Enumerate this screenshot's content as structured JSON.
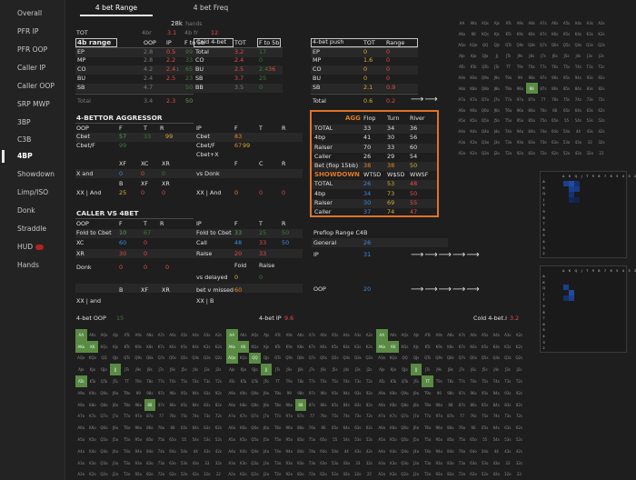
{
  "sidebar": [
    "Overall",
    "PFR IP",
    "PFR OOP",
    "Caller IP",
    "Caller OOP",
    "SRP MWP",
    "3BP",
    "C3B",
    "4BP",
    "Showdown",
    "Limp/ISO",
    "Donk",
    "Straddle",
    "HUD",
    "Hands"
  ],
  "active_nav": "4BP",
  "tabs": [
    "4 bet Range",
    "4 bet Freq"
  ],
  "hands_count": "28k",
  "hands_label": "hands",
  "tot_label": "TOT",
  "tot_4br_label": "4br",
  "tot_4br_val": "3.1",
  "tot_4bfr_label": "4b fr",
  "tot_4bfr_val": "12",
  "range": {
    "title": "4b range",
    "cols": [
      "OOP",
      "IP",
      "F to 5b"
    ],
    "rows": [
      [
        "EP",
        "2.8",
        "0.5",
        "99"
      ],
      [
        "MP",
        "2.8",
        "2.2",
        "33"
      ],
      [
        "CO",
        "4.2",
        "2.4",
        "65"
      ],
      [
        "BU",
        "2.4",
        "2.5",
        "23"
      ],
      [
        "SB",
        "4.7",
        "",
        "50"
      ]
    ],
    "smalls": [
      "",
      "",
      "1",
      "",
      ""
    ],
    "total": [
      "Total",
      "3.4",
      "2.3",
      "50"
    ]
  },
  "cold": {
    "title": "Cold 4-bet",
    "cols": [
      "TOT",
      "F to 5b"
    ],
    "rows": [
      [
        "Total",
        "3.2",
        "17"
      ],
      [
        "CO",
        "2.4",
        "0"
      ],
      [
        "BU",
        "2.5",
        "2.4"
      ],
      [
        "SB",
        "3.7",
        "25"
      ],
      [
        "BB",
        "3.5",
        "0"
      ]
    ],
    "extra": [
      "",
      "",
      "36",
      "",
      ""
    ]
  },
  "push": {
    "title": "4-bet push",
    "cols": [
      "TOT",
      "Range"
    ],
    "rows": [
      [
        "EP",
        "0",
        "0"
      ],
      [
        "MP",
        "1.6",
        "0"
      ],
      [
        "CO",
        "0",
        "0"
      ],
      [
        "BU",
        "0",
        "0"
      ],
      [
        "SB",
        "2.1",
        "0.9"
      ]
    ],
    "total": [
      "Total",
      "0.6",
      "0.2"
    ]
  },
  "aggressor": {
    "title": "4-BETTOR AGGRESSOR",
    "cols": [
      "OOP",
      "F",
      "T",
      "R",
      "IP",
      "F",
      "T",
      "R"
    ],
    "cbet": [
      "Cbet",
      "57",
      "33",
      "",
      "Cbet",
      "83",
      "",
      ""
    ],
    "cbetf": [
      "Cbet/F",
      "99",
      "",
      "",
      "Cbet/F",
      "67",
      "",
      ""
    ],
    "cbetx": [
      "",
      "",
      "",
      "",
      "Cbet+X",
      "",
      "",
      ""
    ],
    "sub2": [
      "XF",
      "XC",
      "XR",
      "",
      "F",
      "C",
      "R"
    ],
    "xand": [
      "X and",
      "0",
      "0",
      "0",
      "vs Donk",
      "",
      "",
      ""
    ],
    "sub3": [
      "B",
      "XF",
      "XR"
    ],
    "xxand": [
      "XX | And",
      "25",
      "0",
      "0",
      "XX | And",
      "0",
      "0",
      "0"
    ]
  },
  "caller": {
    "title": "CALLER VS 4BET",
    "cols": [
      "OOP",
      "F",
      "T",
      "R",
      "IP",
      "F",
      "T",
      "R"
    ],
    "fold": [
      "Fold to Cbet",
      "10",
      "67",
      "",
      "Fold to Cbet",
      "33",
      "25",
      "50"
    ],
    "xc": [
      "XC",
      "60",
      "0",
      "",
      "Call",
      "48",
      "33",
      "50"
    ],
    "xr": [
      "XR",
      "30",
      "0",
      "",
      "Raise",
      "20",
      "33",
      ""
    ],
    "sub": [
      "Fold",
      "Raise"
    ],
    "donk": [
      "Donk",
      "0",
      "0",
      "0",
      "",
      "",
      ""
    ],
    "delayed": [
      "vs delayed",
      "0",
      "0"
    ],
    "missed": [
      "bet v missed",
      "60"
    ],
    "sub4": [
      "B",
      "XF",
      "XR",
      "",
      "XX | B"
    ],
    "xxand": [
      "XX | and",
      "",
      "",
      "",
      ""
    ]
  },
  "agg": {
    "title": "AGG",
    "cols": [
      "Flop",
      "Turn",
      "River"
    ],
    "rows": [
      [
        "TOTAL",
        "33",
        "34",
        "36"
      ],
      [
        "4bp",
        "41",
        "30",
        "56"
      ],
      [
        "Raiser",
        "70",
        "33",
        "60"
      ],
      [
        "Caller",
        "26",
        "29",
        "54"
      ],
      [
        "Bet (flop 15bb)",
        "38",
        "38",
        "50"
      ]
    ],
    "sd_title": "SHOWDOWN",
    "sd_cols": [
      "WTSD",
      "W$SD",
      "WWSF"
    ],
    "sd": [
      [
        "TOTAL",
        "26",
        "53",
        "48"
      ],
      [
        "4bp",
        "34",
        "73",
        "50"
      ],
      [
        "Raiser",
        "30",
        "69",
        "55"
      ],
      [
        "Caller",
        "37",
        "74",
        "47"
      ]
    ]
  },
  "preflop": {
    "title": "Preflop Range C4B",
    "general": "26",
    "ip": "31",
    "oop": "20"
  },
  "bottom": {
    "oop_label": "4-bet OOP",
    "oop_val": "15",
    "ip_label": "4-bet IP",
    "ip_val": "9.6",
    "cold_label": "Cold 4-bet.i",
    "cold_val": "3.2"
  },
  "ranks": [
    "A",
    "K",
    "Q",
    "J",
    "T",
    "9",
    "8",
    "7",
    "6",
    "5",
    "4",
    "3",
    "2"
  ],
  "heat_ranks": "A K Q J T 9 8 7 6 5 4 3 2"
}
